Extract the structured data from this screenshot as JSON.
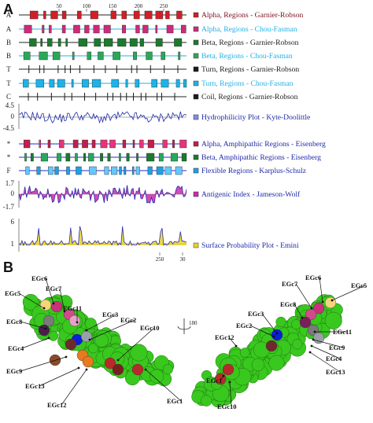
{
  "panel_a_letter": "A",
  "panel_b_letter": "B",
  "chart_data": [
    {
      "type": "table",
      "x_ticks_top": [
        "50",
        "100",
        "150",
        "200",
        "250"
      ],
      "x_ticks_bottom": [
        "250",
        "30"
      ],
      "tracks": [
        {
          "row_label": "A",
          "legend": "Alpha, Regions - Garnier-Robson",
          "color": "#d11f26",
          "legend_color": "#7a1020",
          "line": "#222222",
          "style": "blocks"
        },
        {
          "row_label": "A",
          "legend": "Alpha, Regions - Chou-Fasman",
          "color": "#cf2a78",
          "legend_color": "#1fb2e6",
          "line": "#1fb2e6",
          "style": "blocks"
        },
        {
          "row_label": "B",
          "legend": "Beta, Regions - Garnier-Robson",
          "color": "#1c7a2e",
          "legend_color": "#1c1c1c",
          "line": "#222222",
          "style": "blocks"
        },
        {
          "row_label": "B",
          "legend": "Beta, Regions - Chou-Fasman",
          "color": "#2aa85a",
          "legend_color": "#1fb2e6",
          "line": "#1fb2e6",
          "style": "blocks"
        },
        {
          "row_label": "T",
          "legend": "Turn, Regions - Garnier-Robson",
          "color": "#1a1a1a",
          "legend_color": "#1c1c1c",
          "line": "#222222",
          "style": "ticks"
        },
        {
          "row_label": "T",
          "legend": "Turn, Regions - Chou-Fasman",
          "color": "#1fb2e6",
          "legend_color": "#1fb2e6",
          "line": "#1fb2e6",
          "style": "blocks"
        },
        {
          "row_label": "C",
          "legend": "Coil, Regions - Garnier-Robson",
          "color": "#1a1a1a",
          "legend_color": "#1c1c1c",
          "line": "#222222",
          "style": "ticks"
        }
      ],
      "hydrophilicity": {
        "legend": "Hydrophilicity Plot - Kyte-Doolittle",
        "y_ticks": [
          "4.5",
          "0",
          "-4.5"
        ],
        "color": "#1f2aa8"
      },
      "amphipathic": [
        {
          "row_label": "*",
          "legend": "Alpha, Amphipathic Regions - Eisenberg",
          "color": "#c21f4a"
        },
        {
          "row_label": "*",
          "legend": "Beta, Amphipathic Regions - Eisenberg",
          "color": "#1c7a2e"
        },
        {
          "row_label": "F",
          "legend": "Flexible Regions - Karplus-Schulz",
          "color": "#1fa0e6"
        }
      ],
      "antigenic": {
        "legend": "Antigenic Index - Jameson-Wolf",
        "y_ticks": [
          "1.7",
          "0",
          "-1.7"
        ],
        "color": "#cc2aa8"
      },
      "surface": {
        "legend": "Surface Probability Plot - Emini",
        "y_ticks": [
          "6",
          "1"
        ],
        "color": "#e8d22a"
      }
    }
  ],
  "structure_b": {
    "left_labels": [
      "EGc6",
      "EGc5",
      "EGc7",
      "EGc11",
      "EGc3",
      "EGc2",
      "EGc10",
      "EGc8",
      "EGc4",
      "EGc9",
      "EGc13",
      "EGc12",
      "EGc1"
    ],
    "right_labels": [
      "EGc7",
      "EGc6",
      "EGc5",
      "EGc8",
      "EGc3",
      "EGc2",
      "EGc12",
      "EGc11",
      "EGc9",
      "EGc4",
      "EGc13",
      "EGc1",
      "EGc10"
    ],
    "rotation_label": "180"
  }
}
